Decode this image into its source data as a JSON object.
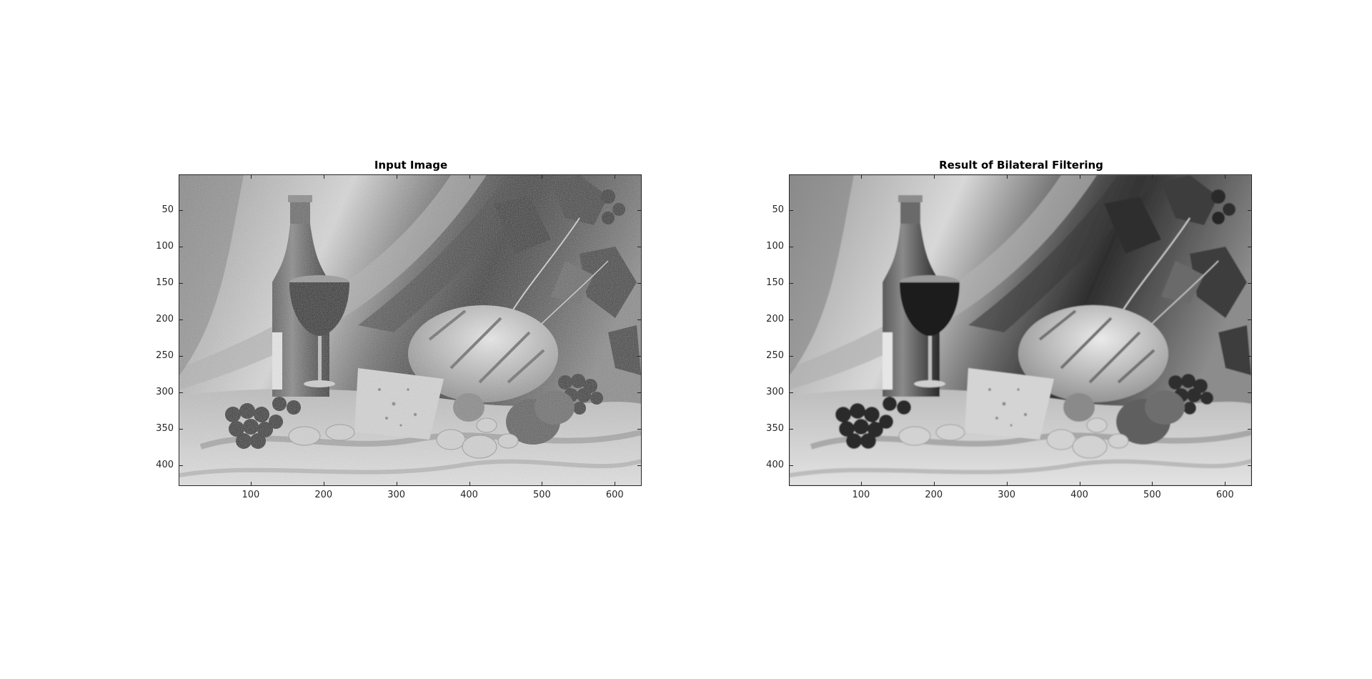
{
  "figure": {
    "background": "#ffffff",
    "axes": [
      {
        "title": "Input Image",
        "variant": "noisy",
        "x_range": [
          1,
          637
        ],
        "y_range": [
          1,
          428
        ],
        "x_ticks": [
          100,
          200,
          300,
          400,
          500,
          600
        ],
        "y_ticks": [
          50,
          100,
          150,
          200,
          250,
          300,
          350,
          400
        ],
        "x_tick_labels": [
          "100",
          "200",
          "300",
          "400",
          "500",
          "600"
        ],
        "y_tick_labels": [
          "50",
          "100",
          "150",
          "200",
          "250",
          "300",
          "350",
          "400"
        ]
      },
      {
        "title": "Result of Bilateral Filtering",
        "variant": "smooth",
        "x_range": [
          1,
          637
        ],
        "y_range": [
          1,
          428
        ],
        "x_ticks": [
          100,
          200,
          300,
          400,
          500,
          600
        ],
        "y_ticks": [
          50,
          100,
          150,
          200,
          250,
          300,
          350,
          400
        ],
        "x_tick_labels": [
          "100",
          "200",
          "300",
          "400",
          "500",
          "600"
        ],
        "y_tick_labels": [
          "50",
          "100",
          "150",
          "200",
          "250",
          "300",
          "350",
          "400"
        ]
      }
    ],
    "image_content": "grayscale still life: wine bottle, wine glass, bread loaf, cheese wedge, grapes, mushrooms, onions, grape leaves on draped cloth",
    "colors": {
      "axis_line": "#262626",
      "tick_text": "#262626",
      "title_text": "#000000"
    }
  }
}
